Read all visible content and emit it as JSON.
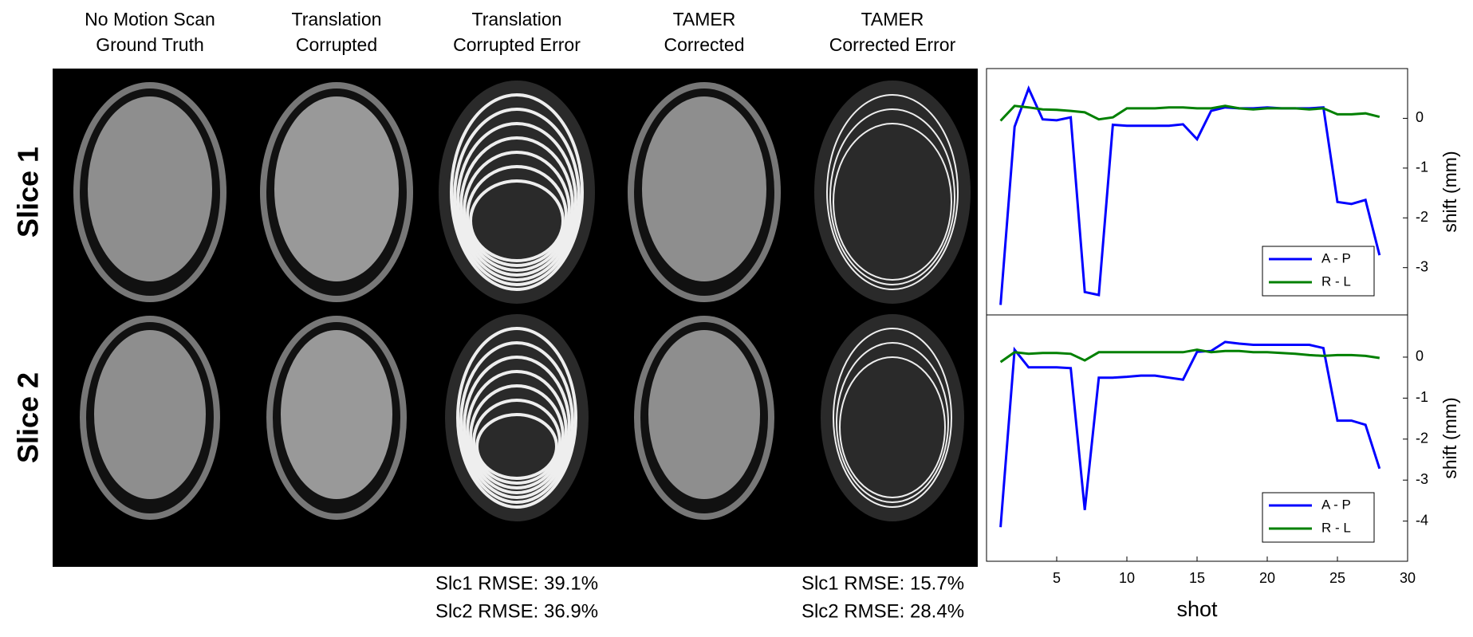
{
  "columns": [
    {
      "lines": [
        "No Motion Scan",
        "Ground Truth"
      ]
    },
    {
      "lines": [
        "Translation",
        "Corrupted"
      ]
    },
    {
      "lines": [
        "Translation",
        "Corrupted Error"
      ]
    },
    {
      "lines": [
        "TAMER",
        "Corrected"
      ]
    },
    {
      "lines": [
        "TAMER",
        "Corrected Error"
      ]
    }
  ],
  "rows": [
    "Slice 1",
    "Slice 2"
  ],
  "rmse": [
    {
      "lines": [
        "Slc1 RMSE: 39.1%",
        "Slc2 RMSE: 36.9%"
      ]
    },
    {
      "lines": [
        "Slc1 RMSE: 15.7%",
        "Slc2 RMSE: 28.4%"
      ]
    }
  ],
  "chart_data": [
    {
      "type": "line",
      "ylabel": "shift (mm)",
      "x": [
        1,
        2,
        3,
        4,
        5,
        6,
        7,
        8,
        9,
        10,
        11,
        12,
        13,
        14,
        15,
        16,
        17,
        18,
        19,
        20,
        21,
        22,
        23,
        24,
        25,
        26,
        27,
        28
      ],
      "xlim": [
        0,
        30
      ],
      "ylim": [
        -3.95,
        1
      ],
      "yticks": [
        0,
        -1,
        -2,
        -3
      ],
      "legend": "lower right",
      "series": [
        {
          "name": "A - P",
          "color": "#0000ff",
          "values": [
            -3.75,
            -0.17,
            0.6,
            -0.02,
            -0.04,
            0.02,
            -3.49,
            -3.55,
            -0.13,
            -0.15,
            -0.15,
            -0.15,
            -0.15,
            -0.12,
            -0.42,
            0.15,
            0.22,
            0.2,
            0.2,
            0.22,
            0.2,
            0.2,
            0.2,
            0.22,
            -1.68,
            -1.72,
            -1.64,
            -2.75
          ]
        },
        {
          "name": "R - L",
          "color": "#008000",
          "values": [
            -0.05,
            0.25,
            0.22,
            0.18,
            0.17,
            0.15,
            0.12,
            -0.02,
            0.02,
            0.2,
            0.2,
            0.2,
            0.22,
            0.22,
            0.2,
            0.2,
            0.25,
            0.2,
            0.18,
            0.2,
            0.2,
            0.2,
            0.18,
            0.2,
            0.08,
            0.08,
            0.1,
            0.03
          ]
        }
      ]
    },
    {
      "type": "line",
      "ylabel": "shift (mm)",
      "xlabel": "shot",
      "x": [
        1,
        2,
        3,
        4,
        5,
        6,
        7,
        8,
        9,
        10,
        11,
        12,
        13,
        14,
        15,
        16,
        17,
        18,
        19,
        20,
        21,
        22,
        23,
        24,
        25,
        26,
        27,
        28
      ],
      "xlim": [
        0,
        30
      ],
      "xticks": [
        5,
        10,
        15,
        20,
        25,
        30
      ],
      "ylim": [
        -4.98,
        1.03
      ],
      "yticks": [
        0,
        -1,
        -2,
        -3,
        -4
      ],
      "legend": "lower right",
      "series": [
        {
          "name": "A - P",
          "color": "#0000ff",
          "values": [
            -4.15,
            0.18,
            -0.25,
            -0.25,
            -0.25,
            -0.27,
            -3.73,
            -0.5,
            -0.5,
            -0.48,
            -0.45,
            -0.45,
            -0.5,
            -0.55,
            0.13,
            0.15,
            0.37,
            0.33,
            0.3,
            0.3,
            0.3,
            0.3,
            0.3,
            0.22,
            -1.55,
            -1.55,
            -1.65,
            -2.72
          ]
        },
        {
          "name": "R - L",
          "color": "#008000",
          "values": [
            -0.12,
            0.12,
            0.08,
            0.1,
            0.1,
            0.08,
            -0.08,
            0.12,
            0.12,
            0.12,
            0.12,
            0.12,
            0.12,
            0.12,
            0.18,
            0.12,
            0.15,
            0.15,
            0.12,
            0.12,
            0.1,
            0.08,
            0.05,
            0.03,
            0.05,
            0.05,
            0.03,
            -0.02
          ]
        }
      ]
    }
  ]
}
